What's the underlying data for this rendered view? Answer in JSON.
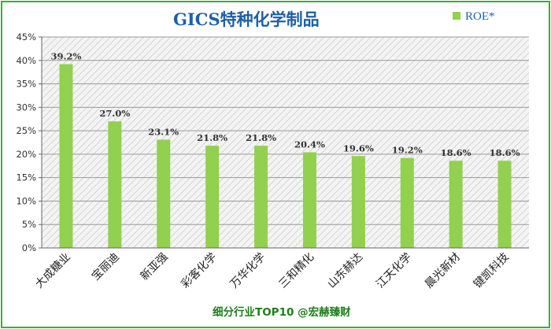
{
  "chart_data": {
    "type": "bar",
    "title": "GICS特种化学制品",
    "categories": [
      "大成糖业",
      "宝丽迪",
      "新亚强",
      "彩客化学",
      "万华化学",
      "三和精化",
      "山东赫达",
      "江天化学",
      "晨光新材",
      "键凯科技"
    ],
    "series": [
      {
        "name": "ROE*",
        "values": [
          39.2,
          27.0,
          23.1,
          21.8,
          21.8,
          20.4,
          19.6,
          19.2,
          18.6,
          18.6
        ],
        "value_labels": [
          "39.2%",
          "27.0%",
          "23.1%",
          "21.8%",
          "21.8%",
          "20.4%",
          "19.6%",
          "19.2%",
          "18.6%",
          "18.6%"
        ]
      }
    ],
    "ylim": [
      0,
      45
    ],
    "yticks": [
      "0%",
      "5%",
      "10%",
      "15%",
      "20%",
      "25%",
      "30%",
      "35%",
      "40%",
      "45%"
    ],
    "grid": true,
    "legend_position": "top-right",
    "footnote": "细分行业TOP10 @宏赫臻财",
    "colors": {
      "bar": "#92d050",
      "frame": "#35b22f",
      "title": "#1f5fa8",
      "footnote": "#1e7d1a",
      "plot_hatch": "#d4d4d4"
    }
  }
}
